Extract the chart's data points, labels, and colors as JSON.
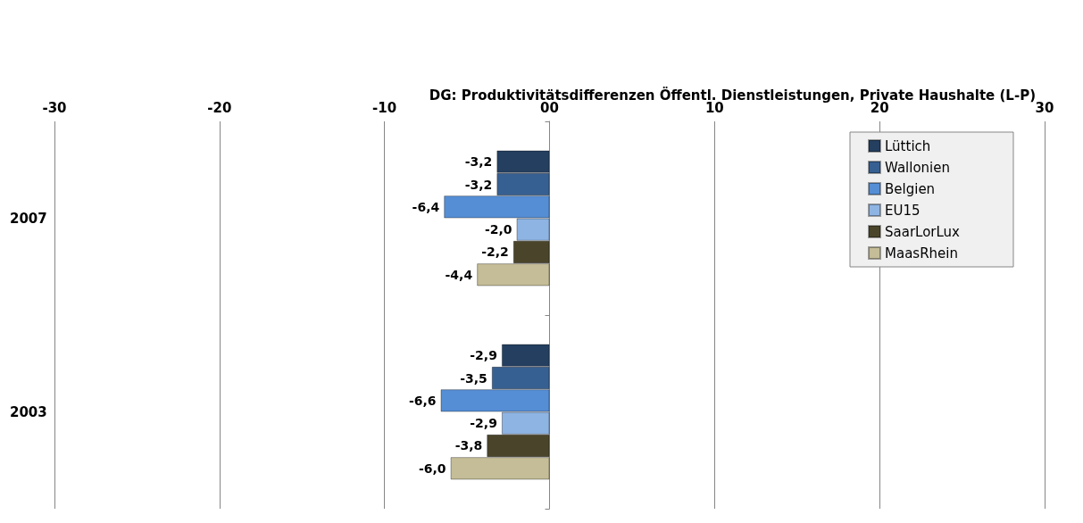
{
  "chart_data": {
    "type": "bar",
    "orientation": "horizontal",
    "title": "DG: Produktivitätsdifferenzen Öffentl. Dienstleistungen, Private Haushalte (L-P)",
    "categories": [
      "2007",
      "2003"
    ],
    "series": [
      {
        "name": "Lüttich",
        "color": "#243f60",
        "values": [
          -3.2,
          -2.9
        ],
        "value_labels": [
          "-3,2",
          "-2,9"
        ]
      },
      {
        "name": "Wallonien",
        "color": "#376092",
        "values": [
          -3.2,
          -3.5
        ],
        "value_labels": [
          "-3,2",
          "-3,5"
        ]
      },
      {
        "name": "Belgien",
        "color": "#558ed5",
        "values": [
          -6.4,
          -6.6
        ],
        "value_labels": [
          "-6,4",
          "-6,6"
        ]
      },
      {
        "name": "EU15",
        "color": "#8eb4e3",
        "values": [
          -2.0,
          -2.9
        ],
        "value_labels": [
          "-2,0",
          "-2,9"
        ]
      },
      {
        "name": "SaarLorLux",
        "color": "#4a452a",
        "values": [
          -2.2,
          -3.8
        ],
        "value_labels": [
          "-2,2",
          "-3,8"
        ]
      },
      {
        "name": "MaasRhein",
        "color": "#c4bd97",
        "values": [
          -4.4,
          -6.0
        ],
        "value_labels": [
          "-4,4",
          "-6,0"
        ]
      }
    ],
    "xlim": [
      -30,
      30
    ],
    "xticks": [
      -30,
      -20,
      -10,
      {
        "value": 0,
        "label": "00"
      },
      10,
      20,
      30
    ],
    "grid": "x",
    "legend": "top right"
  }
}
